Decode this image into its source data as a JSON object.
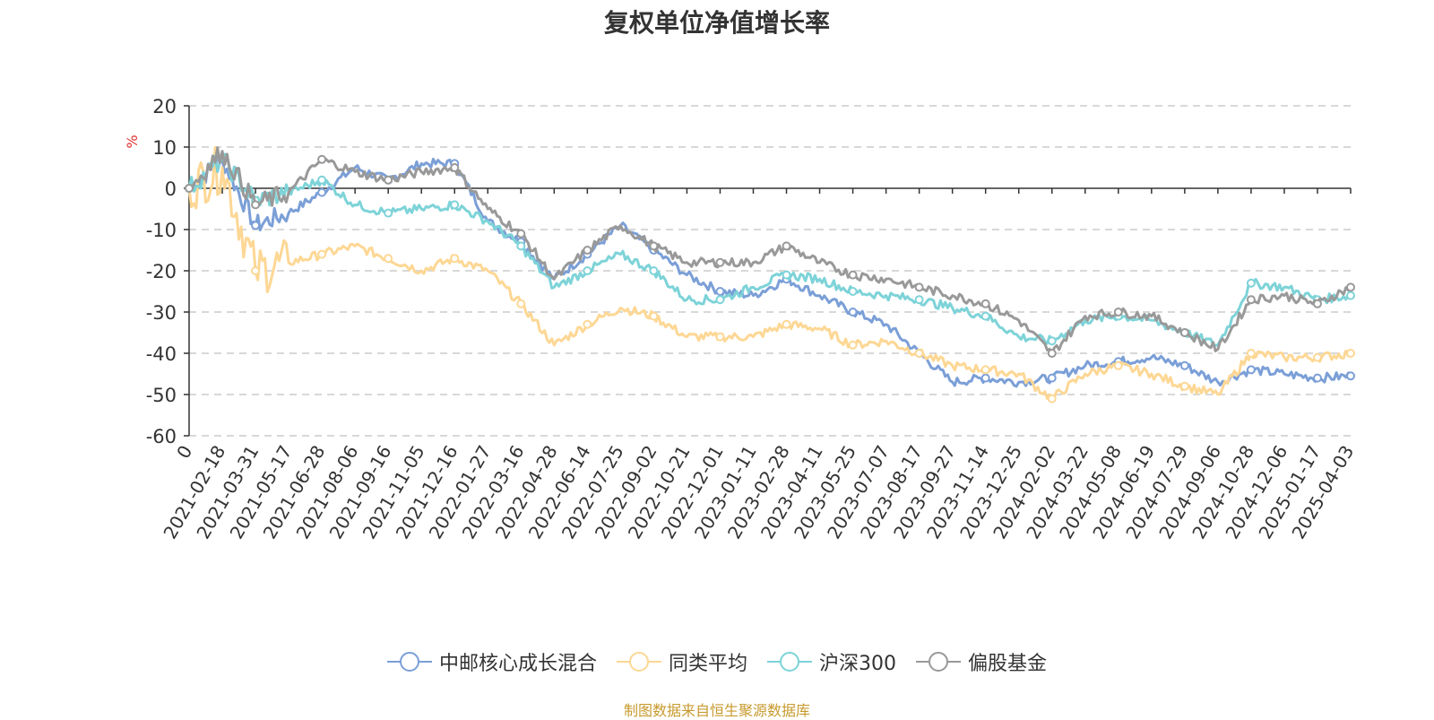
{
  "title": "复权单位净值增长率",
  "source": "制图数据来自恒生聚源数据库",
  "colors": {
    "source_text": "#c79a2e",
    "unit_label": "#e03030",
    "axis": "#333333",
    "grid": "#cccccc"
  },
  "chart_data": {
    "type": "line",
    "title": "复权单位净值增长率",
    "xlabel": "",
    "ylabel": "%",
    "ylim": [
      -60,
      20
    ],
    "yticks": [
      20,
      10,
      0,
      -10,
      -20,
      -30,
      -40,
      -50,
      -60
    ],
    "grid": true,
    "legend_position": "bottom",
    "categories": [
      "0",
      "2021-02-18",
      "2021-03-31",
      "2021-05-17",
      "2021-06-28",
      "2021-08-06",
      "2021-09-16",
      "2021-11-05",
      "2021-12-16",
      "2022-01-27",
      "2022-03-16",
      "2022-04-28",
      "2022-06-14",
      "2022-07-25",
      "2022-09-02",
      "2022-10-21",
      "2022-12-01",
      "2023-01-11",
      "2023-02-28",
      "2023-04-11",
      "2023-05-25",
      "2023-07-07",
      "2023-08-17",
      "2023-09-27",
      "2023-11-14",
      "2023-12-25",
      "2024-02-02",
      "2024-03-22",
      "2024-05-08",
      "2024-06-19",
      "2024-07-29",
      "2024-09-06",
      "2024-10-28",
      "2024-12-06",
      "2025-01-17",
      "2025-04-03"
    ],
    "series": [
      {
        "name": "中邮核心成长混合",
        "color": "#7b9fd7",
        "values": [
          0,
          7,
          -9,
          -6,
          -1,
          5,
          2,
          6,
          6,
          -8,
          -13,
          -22,
          -16,
          -9,
          -15,
          -21,
          -25,
          -26,
          -22,
          -26,
          -30,
          -33,
          -40,
          -47,
          -46,
          -47,
          -46,
          -43,
          -42,
          -41,
          -43,
          -47,
          -44,
          -45,
          -46,
          -45.5
        ]
      },
      {
        "name": "同类平均",
        "color": "#fdd794",
        "values": [
          0,
          5,
          -20,
          -18,
          -16,
          -14,
          -17,
          -20,
          -17,
          -20,
          -28,
          -38,
          -33,
          -29,
          -31,
          -36,
          -36,
          -36,
          -33,
          -34,
          -38,
          -37,
          -40,
          -43,
          -44,
          -45,
          -51,
          -45,
          -43,
          -45,
          -48,
          -50,
          -40,
          -41,
          -41,
          -40
        ]
      },
      {
        "name": "沪深300",
        "color": "#7dd3d8",
        "values": [
          0,
          7,
          -3,
          -1,
          2,
          -4,
          -6,
          -5,
          -4,
          -8,
          -14,
          -24,
          -20,
          -16,
          -20,
          -27,
          -27,
          -24,
          -21,
          -22,
          -25,
          -26,
          -27,
          -29,
          -31,
          -36,
          -37,
          -32,
          -31,
          -32,
          -35,
          -38,
          -23,
          -24,
          -27,
          -26
        ]
      },
      {
        "name": "偏股基金",
        "color": "#999999",
        "values": [
          0,
          9,
          -4,
          -1,
          7,
          4,
          2,
          4,
          5,
          -5,
          -11,
          -22,
          -15,
          -9,
          -14,
          -18,
          -18,
          -18,
          -14,
          -18,
          -21,
          -22,
          -24,
          -26,
          -28,
          -32,
          -40,
          -31,
          -30,
          -31,
          -35,
          -39,
          -27,
          -26,
          -28,
          -24
        ]
      }
    ]
  }
}
